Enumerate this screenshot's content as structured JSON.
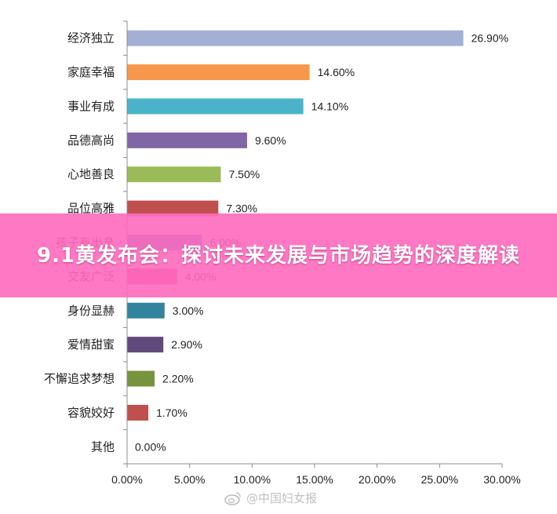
{
  "chart_data": {
    "type": "bar",
    "orientation": "horizontal",
    "categories": [
      "经济独立",
      "家庭幸福",
      "事业有成",
      "品德高尚",
      "心地善良",
      "品位高雅",
      "孩子有出息",
      "交友广泛",
      "身份显赫",
      "爱情甜蜜",
      "不懈追求梦想",
      "容貌姣好",
      "其他"
    ],
    "values": [
      26.9,
      14.6,
      14.1,
      9.6,
      7.5,
      7.3,
      6.0,
      4.0,
      3.0,
      2.9,
      2.2,
      1.7,
      0.0
    ],
    "value_labels": [
      "26.90%",
      "14.60%",
      "14.10%",
      "9.60%",
      "7.50%",
      "7.30%",
      "6.00%",
      "4.00%",
      "3.00%",
      "2.90%",
      "2.20%",
      "1.70%",
      "0.00%"
    ],
    "colors": [
      "#a4b0d3",
      "#f7974b",
      "#4ab3c9",
      "#8166a6",
      "#9bbb59",
      "#c0504d",
      "#4f81bd",
      "#e84c83",
      "#31849b",
      "#604a7b",
      "#77933c",
      "#c0504d",
      "#4f81bd"
    ],
    "xlim": [
      0,
      30
    ],
    "x_ticks": [
      "0.00%",
      "5.00%",
      "10.00%",
      "15.00%",
      "20.00%",
      "25.00%",
      "30.00%"
    ],
    "x_tick_values": [
      0,
      5,
      10,
      15,
      20,
      25,
      30
    ],
    "xlabel": "",
    "ylabel": "",
    "grid": false,
    "legend": "none"
  },
  "overlay": {
    "banner_title": "9.1黄发布会：探讨未来发展与市场趋势的深度解读",
    "banner_color": "#ff69be",
    "watermark_text": "@中国妇女报",
    "watermark_icon": "weibo-icon"
  }
}
